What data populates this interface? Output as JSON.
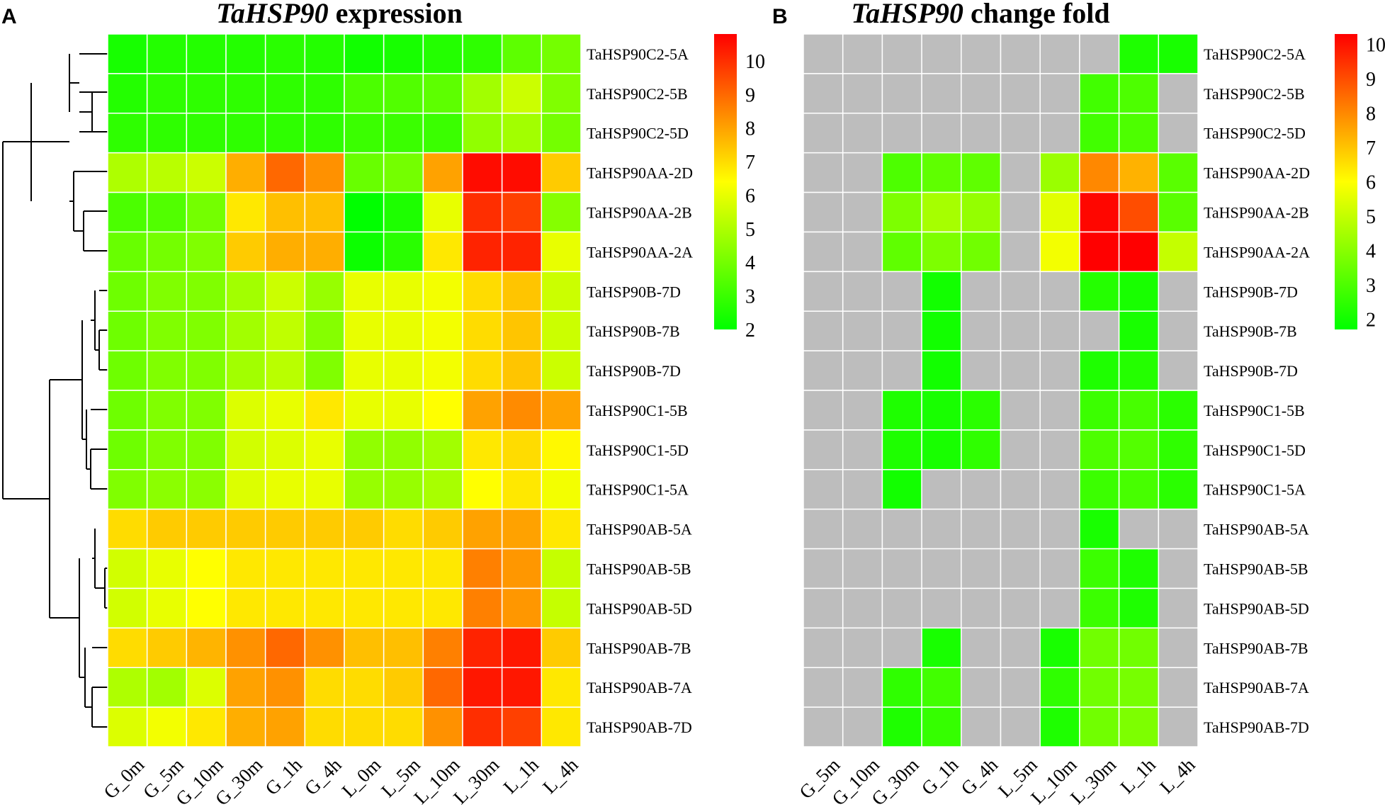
{
  "colors": {
    "scale": [
      "#00ff00",
      "#ffff00",
      "#ff0000"
    ],
    "na": "#bdbdbd",
    "grid": "#ffffff"
  },
  "chart_data": [
    {
      "type": "heatmap",
      "panel": "A",
      "title_gene": "TaHSP90",
      "title_rest": " expression",
      "columns": [
        "G_0m",
        "G_5m",
        "G_10m",
        "G_30m",
        "G_1h",
        "G_4h",
        "L_0m",
        "L_5m",
        "L_10m",
        "L_30m",
        "L_1h",
        "L_4h"
      ],
      "rows": [
        "TaHSP90C2-5A",
        "TaHSP90C2-5B",
        "TaHSP90C2-5D",
        "TaHSP90AA-2D",
        "TaHSP90AA-2B",
        "TaHSP90AA-2A",
        "TaHSP90B-7D",
        "TaHSP90B-7B",
        "TaHSP90B-7D",
        "TaHSP90C1-5B",
        "TaHSP90C1-5D",
        "TaHSP90C1-5A",
        "TaHSP90AB-5A",
        "TaHSP90AB-5B",
        "TaHSP90AB-5D",
        "TaHSP90AB-7B",
        "TaHSP90AB-7A",
        "TaHSP90AB-7D"
      ],
      "values": [
        [
          2.4,
          2.6,
          2.6,
          2.6,
          2.7,
          2.6,
          2.3,
          2.4,
          2.6,
          2.8,
          3.6,
          4.0
        ],
        [
          2.6,
          2.8,
          2.8,
          2.8,
          2.8,
          2.8,
          3.3,
          3.4,
          3.6,
          4.8,
          5.5,
          4.2
        ],
        [
          2.8,
          2.8,
          2.8,
          2.8,
          2.8,
          2.8,
          3.0,
          3.0,
          3.0,
          4.5,
          4.8,
          4.0
        ],
        [
          5.0,
          5.2,
          5.5,
          7.8,
          9.0,
          8.3,
          3.8,
          4.0,
          8.0,
          10.6,
          10.6,
          7.3
        ],
        [
          3.3,
          3.4,
          4.0,
          6.8,
          7.5,
          7.5,
          2.0,
          2.5,
          6.0,
          10.0,
          9.7,
          4.3
        ],
        [
          3.8,
          4.0,
          4.2,
          7.3,
          7.8,
          7.8,
          2.2,
          2.7,
          6.8,
          10.2,
          10.2,
          6.0
        ],
        [
          3.9,
          4.2,
          4.2,
          4.8,
          5.5,
          4.6,
          6.0,
          6.0,
          6.2,
          7.0,
          7.4,
          5.5
        ],
        [
          3.9,
          4.2,
          4.2,
          4.8,
          5.3,
          4.3,
          6.0,
          6.0,
          6.2,
          7.0,
          7.4,
          5.5
        ],
        [
          3.9,
          4.2,
          4.2,
          4.8,
          5.2,
          4.2,
          6.0,
          6.0,
          6.2,
          7.0,
          7.4,
          5.5
        ],
        [
          3.9,
          4.2,
          4.2,
          5.8,
          6.0,
          6.8,
          6.0,
          6.0,
          6.4,
          8.0,
          8.4,
          8.0
        ],
        [
          3.9,
          4.2,
          4.2,
          5.6,
          5.8,
          6.0,
          4.5,
          4.5,
          4.8,
          6.8,
          7.0,
          6.5
        ],
        [
          4.2,
          4.4,
          4.4,
          5.8,
          6.0,
          6.0,
          4.6,
          4.6,
          4.9,
          6.4,
          6.8,
          6.2
        ],
        [
          7.0,
          7.3,
          7.3,
          7.3,
          7.3,
          7.3,
          7.3,
          7.0,
          7.3,
          8.0,
          8.0,
          6.8
        ],
        [
          5.6,
          6.0,
          6.4,
          6.8,
          6.8,
          6.8,
          6.8,
          6.8,
          6.8,
          8.6,
          8.2,
          5.4
        ],
        [
          5.6,
          6.0,
          6.4,
          6.8,
          6.8,
          6.8,
          6.8,
          6.8,
          6.8,
          8.6,
          8.2,
          5.4
        ],
        [
          7.0,
          7.3,
          7.7,
          8.3,
          9.0,
          8.3,
          7.5,
          7.5,
          8.6,
          10.2,
          10.4,
          7.3
        ],
        [
          5.0,
          4.8,
          5.8,
          8.0,
          8.3,
          7.0,
          7.0,
          7.3,
          9.0,
          10.4,
          10.4,
          6.8
        ],
        [
          5.8,
          6.2,
          6.8,
          7.8,
          8.0,
          7.0,
          7.0,
          7.0,
          8.3,
          10.0,
          9.7,
          6.8
        ]
      ],
      "legend_ticks": [
        2,
        3,
        4,
        5,
        6,
        7,
        8,
        9,
        10
      ],
      "vmin": 2,
      "vmax": 10.8
    },
    {
      "type": "heatmap",
      "panel": "B",
      "title_gene": "TaHSP90",
      "title_rest": " change fold",
      "columns": [
        "G_5m",
        "G_10m",
        "G_30m",
        "G_1h",
        "G_4h",
        "L_5m",
        "L_10m",
        "L_30m",
        "L_1h",
        "L_4h"
      ],
      "rows": [
        "TaHSP90C2-5A",
        "TaHSP90C2-5B",
        "TaHSP90C2-5D",
        "TaHSP90AA-2D",
        "TaHSP90AA-2B",
        "TaHSP90AA-2A",
        "TaHSP90B-7D",
        "TaHSP90B-7B",
        "TaHSP90B-7D",
        "TaHSP90C1-5B",
        "TaHSP90C1-5D",
        "TaHSP90C1-5A",
        "TaHSP90AB-5A",
        "TaHSP90AB-5B",
        "TaHSP90AB-5D",
        "TaHSP90AB-7B",
        "TaHSP90AB-7A",
        "TaHSP90AB-7D"
      ],
      "values": [
        [
          null,
          null,
          null,
          null,
          null,
          null,
          null,
          null,
          2.2,
          2.1
        ],
        [
          null,
          null,
          null,
          null,
          null,
          null,
          null,
          2.8,
          3.0,
          null
        ],
        [
          null,
          null,
          null,
          null,
          null,
          null,
          null,
          2.8,
          3.0,
          null
        ],
        [
          null,
          null,
          3.0,
          3.3,
          3.3,
          null,
          4.3,
          8.0,
          7.3,
          3.2
        ],
        [
          null,
          null,
          3.8,
          4.5,
          4.2,
          null,
          5.5,
          10.2,
          9.0,
          3.2
        ],
        [
          null,
          null,
          3.3,
          3.8,
          3.6,
          null,
          5.8,
          10.6,
          10.4,
          5.0
        ],
        [
          null,
          null,
          null,
          2.0,
          null,
          null,
          null,
          2.3,
          2.1,
          null
        ],
        [
          null,
          null,
          null,
          2.0,
          null,
          null,
          null,
          null,
          2.1,
          null
        ],
        [
          null,
          null,
          null,
          2.0,
          null,
          null,
          null,
          2.2,
          2.3,
          null
        ],
        [
          null,
          null,
          2.2,
          2.1,
          2.4,
          null,
          null,
          2.7,
          2.9,
          2.4
        ],
        [
          null,
          null,
          2.2,
          2.1,
          2.5,
          null,
          null,
          3.0,
          3.1,
          2.5
        ],
        [
          null,
          null,
          2.0,
          null,
          null,
          null,
          null,
          2.7,
          2.9,
          2.4
        ],
        [
          null,
          null,
          null,
          null,
          null,
          null,
          null,
          2.1,
          null,
          null
        ],
        [
          null,
          null,
          null,
          null,
          null,
          null,
          null,
          2.7,
          2.2,
          null
        ],
        [
          null,
          null,
          null,
          null,
          null,
          null,
          null,
          2.7,
          2.2,
          null
        ],
        [
          null,
          null,
          null,
          2.1,
          null,
          null,
          2.1,
          3.6,
          3.6,
          null
        ],
        [
          null,
          null,
          2.5,
          2.8,
          null,
          null,
          2.5,
          3.6,
          3.7,
          null
        ],
        [
          null,
          null,
          2.2,
          2.6,
          null,
          null,
          2.2,
          3.6,
          3.8,
          null
        ]
      ],
      "legend_ticks": [
        2,
        3,
        4,
        5,
        6,
        7,
        8,
        9,
        10
      ],
      "vmin": 1.7,
      "vmax": 10.3
    }
  ]
}
